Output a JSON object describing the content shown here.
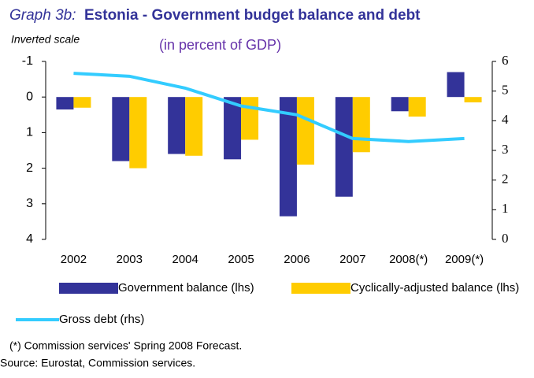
{
  "chart_data": {
    "type": "bar",
    "title_prefix": "Graph 3b:",
    "title": "Estonia - Government budget balance and debt",
    "subtitle": "(in percent of GDP)",
    "axis_note": "Inverted scale",
    "categories": [
      "2002",
      "2003",
      "2004",
      "2005",
      "2006",
      "2007",
      "2008(*)",
      "2009(*)"
    ],
    "series": [
      {
        "name": "Government balance (lhs)",
        "color": "#333399",
        "type": "bar",
        "values": [
          0.35,
          1.8,
          1.6,
          1.75,
          3.35,
          2.8,
          0.4,
          -0.7
        ]
      },
      {
        "name": "Cyclically-adjusted balance (lhs)",
        "color": "#ffcc00",
        "type": "bar",
        "values": [
          0.3,
          2.0,
          1.65,
          1.2,
          1.9,
          1.55,
          0.55,
          0.15
        ]
      },
      {
        "name": "Gross debt (rhs)",
        "color": "#33ccff",
        "type": "line",
        "axis": "y2",
        "values": [
          5.6,
          5.5,
          5.1,
          4.5,
          4.2,
          3.4,
          3.3,
          3.4
        ]
      }
    ],
    "ylim": [
      -1,
      4
    ],
    "y_inverted": true,
    "yticks": [
      -1,
      0,
      1,
      2,
      3,
      4
    ],
    "y2lim": [
      0,
      6
    ],
    "y2ticks": [
      0,
      1,
      2,
      3,
      4,
      5,
      6
    ],
    "notes": [
      "(*) Commission services' Spring 2008 Forecast.",
      "Source: Eurostat, Commission services."
    ]
  }
}
